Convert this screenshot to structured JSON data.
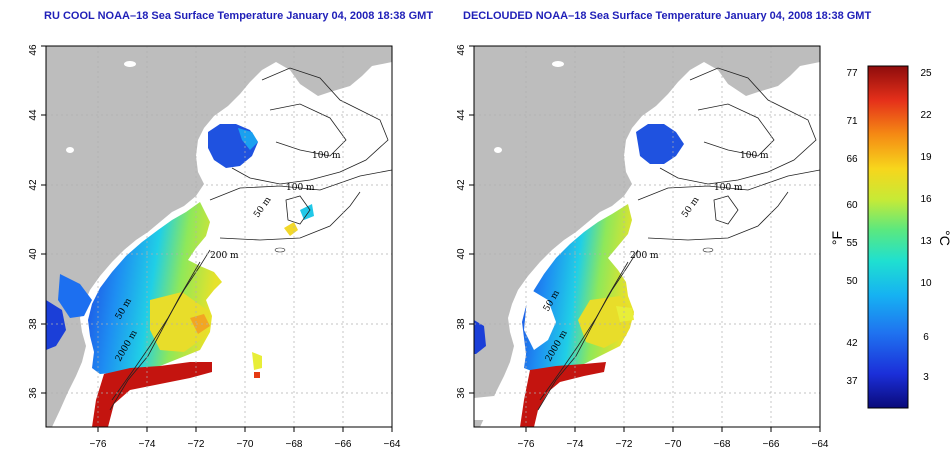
{
  "panels": [
    {
      "title": "RU COOL NOAA–18 Sea Surface Temperature January 04, 2008 18:38 GMT",
      "depth_labels": [
        "100 m",
        "100 m",
        "50 m",
        "200 m",
        "50 m",
        "2000 m"
      ]
    },
    {
      "title": "DECLOUDED NOAA–18 Sea Surface Temperature January 04, 2008 18:38 GMT",
      "depth_labels": [
        "100 m",
        "100 m",
        "50 m",
        "200 m",
        "50 m",
        "2000 m"
      ]
    }
  ],
  "axes": {
    "x_ticks": [
      "−76",
      "−74",
      "−72",
      "−70",
      "−68",
      "−66",
      "−64"
    ],
    "y_ticks": [
      "36",
      "38",
      "40",
      "42",
      "44",
      "46"
    ],
    "lon_range": [
      -77,
      -63
    ],
    "lat_range": [
      35,
      46
    ],
    "grid": true
  },
  "colorbar": {
    "unit_f": "°F",
    "unit_c": "°C",
    "f_ticks": [
      "77",
      "71",
      "66",
      "60",
      "55",
      "50",
      "42",
      "37"
    ],
    "c_ticks": [
      "25",
      "22",
      "19",
      "16",
      "13",
      "10",
      "6",
      "3"
    ],
    "colors": [
      "#0a0a7a",
      "#1b2fd9",
      "#1f73f0",
      "#16b2f2",
      "#1fe0d0",
      "#5ae880",
      "#c7ea36",
      "#f7d61c",
      "#f58a14",
      "#e5301a",
      "#8e0c0c"
    ]
  },
  "colors": {
    "land": "#bdbdbd",
    "title": "#1f1fb8"
  }
}
